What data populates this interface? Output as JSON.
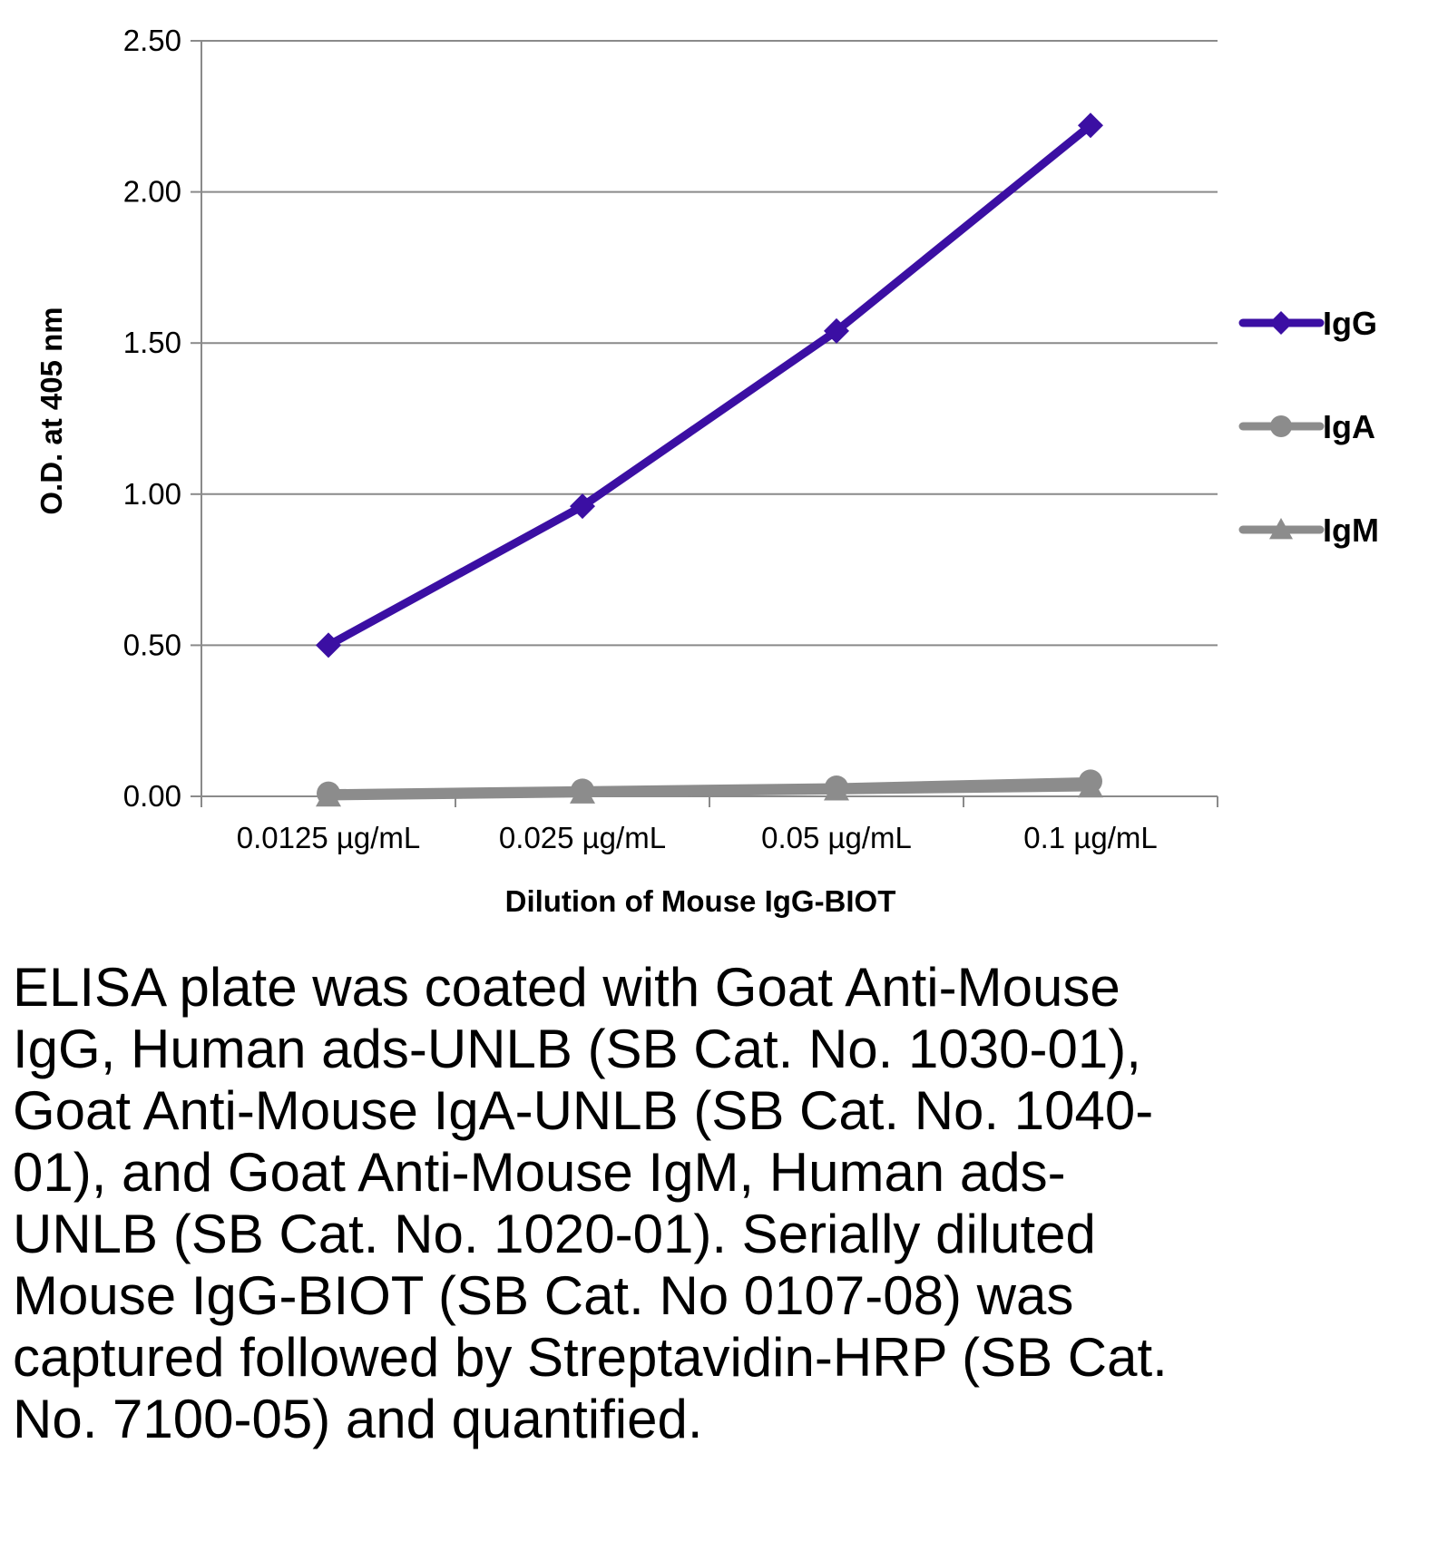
{
  "chart_data": {
    "type": "line",
    "categories": [
      "0.0125 µg/mL",
      "0.025 µg/mL",
      "0.05 µg/mL",
      "0.1 µg/mL"
    ],
    "series": [
      {
        "name": "IgG",
        "values": [
          0.5,
          0.96,
          1.54,
          2.22
        ],
        "color": "#3b0fa3",
        "marker": "diamond"
      },
      {
        "name": "IgA",
        "values": [
          0.01,
          0.02,
          0.03,
          0.05
        ],
        "color": "#8c8c8c",
        "marker": "circle"
      },
      {
        "name": "IgM",
        "values": [
          0.0,
          0.01,
          0.02,
          0.03
        ],
        "color": "#8c8c8c",
        "marker": "triangle"
      }
    ],
    "yticks": [
      "0.00",
      "0.50",
      "1.00",
      "1.50",
      "2.00",
      "2.50"
    ],
    "ylim": [
      0,
      2.5
    ],
    "xlabel": "Dilution of Mouse IgG-BIOT",
    "ylabel": "O.D. at 405 nm",
    "grid": true,
    "legend_position": "right"
  },
  "caption": "ELISA plate was coated with Goat Anti-Mouse IgG, Human ads-UNLB (SB Cat. No. 1030-01), Goat Anti-Mouse IgA-UNLB (SB Cat. No. 1040-01), and Goat Anti-Mouse IgM, Human ads-UNLB (SB Cat. No. 1020-01).  Serially diluted Mouse IgG-BIOT (SB Cat. No 0107-08) was captured followed by Streptavidin-HRP (SB Cat. No. 7100-05) and quantified."
}
